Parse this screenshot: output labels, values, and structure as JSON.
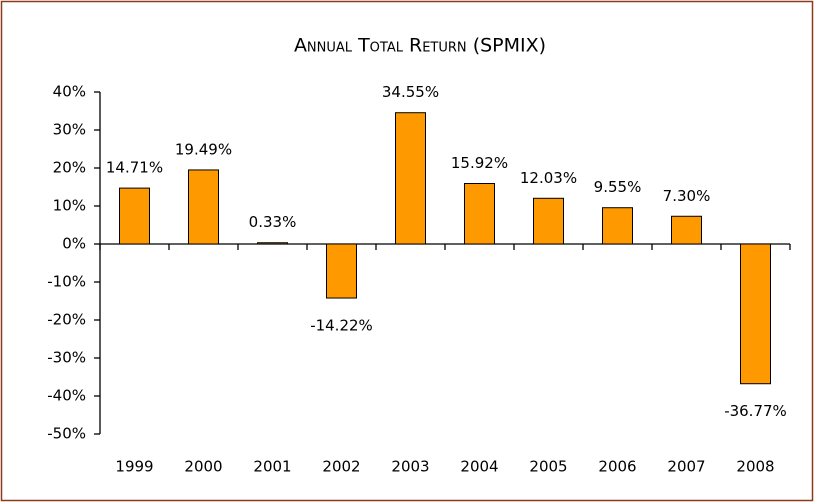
{
  "chart_data": {
    "type": "bar",
    "title": "Annual Total Return (SPMIX)",
    "categories": [
      "1999",
      "2000",
      "2001",
      "2002",
      "2003",
      "2004",
      "2005",
      "2006",
      "2007",
      "2008"
    ],
    "values": [
      14.71,
      19.49,
      0.33,
      -14.22,
      34.55,
      15.92,
      12.03,
      9.55,
      7.3,
      -36.77
    ],
    "value_labels": [
      "14.71%",
      "19.49%",
      "0.33%",
      "-14.22%",
      "34.55%",
      "15.92%",
      "12.03%",
      "9.55%",
      "7.30%",
      "-36.77%"
    ],
    "color": "#ff9900",
    "ylim": [
      -50,
      40
    ],
    "yticks": [
      {
        "value": -50,
        "label": "-50%"
      },
      {
        "value": -40,
        "label": "-40%"
      },
      {
        "value": -30,
        "label": "-30%"
      },
      {
        "value": -20,
        "label": "-20%"
      },
      {
        "value": -10,
        "label": "-10%"
      },
      {
        "value": 0,
        "label": "0%"
      },
      {
        "value": 10,
        "label": "10%"
      },
      {
        "value": 20,
        "label": "20%"
      },
      {
        "value": 30,
        "label": "30%"
      },
      {
        "value": 40,
        "label": "40%"
      }
    ]
  }
}
